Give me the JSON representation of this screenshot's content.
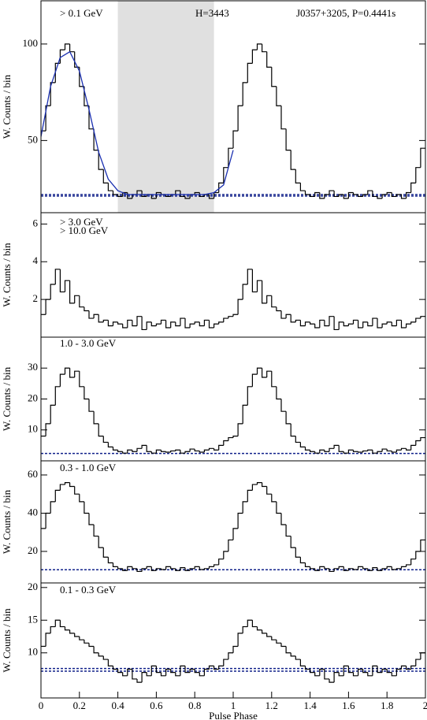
{
  "chart_data": [
    {
      "type": "histogram",
      "ylabel": "W. Counts / bin",
      "color": "#000000",
      "annotations": [
        {
          "text": "> 0.1 GeV",
          "color": "#000000"
        },
        {
          "text": "H=3443",
          "color": "#000000"
        },
        {
          "text": "J0357+3205, P=0.4441s",
          "color": "#1a1ad0"
        }
      ],
      "shade": [
        0.4,
        0.9
      ],
      "shade_color": "#e0e0e0",
      "background_levels": [
        21.2,
        22.0
      ],
      "background_color": "#10208a",
      "fit": {
        "color": "#1a2fb0",
        "x": [
          0,
          0.05,
          0.1,
          0.15,
          0.2,
          0.25,
          0.3,
          0.35,
          0.4,
          0.45,
          0.5,
          0.55,
          0.6,
          0.65,
          0.7,
          0.75,
          0.8,
          0.85,
          0.9,
          0.95,
          1.0
        ],
        "values": [
          52,
          78,
          93,
          96,
          86,
          66,
          44,
          30,
          24,
          22,
          22,
          22,
          22,
          22,
          22,
          22,
          22,
          22,
          23,
          27,
          45
        ]
      },
      "xlim": [
        0,
        2
      ],
      "ylim": [
        12.6,
        122.4
      ],
      "yticks": [
        50,
        100
      ],
      "bins": [
        0,
        0.025,
        0.05,
        0.075,
        0.1,
        0.125,
        0.15,
        0.175,
        0.2,
        0.225,
        0.25,
        0.275,
        0.3,
        0.325,
        0.35,
        0.375,
        0.4,
        0.425,
        0.45,
        0.475,
        0.5,
        0.525,
        0.55,
        0.575,
        0.6,
        0.625,
        0.65,
        0.675,
        0.7,
        0.725,
        0.75,
        0.775,
        0.8,
        0.825,
        0.85,
        0.875,
        0.9,
        0.925,
        0.95,
        0.975,
        1.0,
        1.025,
        1.05,
        1.075,
        1.1,
        1.125,
        1.15,
        1.175,
        1.2,
        1.225,
        1.25,
        1.275,
        1.3,
        1.325,
        1.35,
        1.375,
        1.4,
        1.425,
        1.45,
        1.475,
        1.5,
        1.525,
        1.55,
        1.575,
        1.6,
        1.625,
        1.65,
        1.675,
        1.7,
        1.725,
        1.75,
        1.775,
        1.8,
        1.825,
        1.85,
        1.875,
        1.9,
        1.925,
        1.95,
        1.975,
        2.0
      ],
      "values": [
        55,
        68,
        80,
        90,
        97,
        100,
        96,
        88,
        78,
        68,
        56,
        45,
        35,
        28,
        24,
        22,
        21,
        23,
        20,
        22,
        24,
        21,
        22,
        20,
        23,
        22,
        21,
        22,
        24,
        21,
        20,
        22,
        23,
        21,
        22,
        20,
        23,
        28,
        36,
        46,
        55,
        68,
        80,
        90,
        97,
        100,
        96,
        88,
        78,
        68,
        56,
        45,
        35,
        28,
        24,
        22,
        21,
        23,
        20,
        22,
        24,
        21,
        22,
        20,
        23,
        22,
        21,
        22,
        24,
        21,
        20,
        22,
        23,
        21,
        22,
        20,
        23,
        28,
        36,
        46
      ]
    },
    {
      "type": "histogram",
      "ylabel": "W. Counts / bin",
      "color": "#000000",
      "annotations": [
        {
          "text": "> 3.0 GeV",
          "color": "#000000"
        },
        {
          "text": "> 10.0 GeV",
          "color": "#999999"
        }
      ],
      "xlim": [
        0,
        2
      ],
      "ylim": [
        0,
        6.6
      ],
      "yticks": [
        2,
        4,
        6
      ],
      "bins": [
        0,
        0.025,
        0.05,
        0.075,
        0.1,
        0.125,
        0.15,
        0.175,
        0.2,
        0.225,
        0.25,
        0.275,
        0.3,
        0.325,
        0.35,
        0.375,
        0.4,
        0.425,
        0.45,
        0.475,
        0.5,
        0.525,
        0.55,
        0.575,
        0.6,
        0.625,
        0.65,
        0.675,
        0.7,
        0.725,
        0.75,
        0.775,
        0.8,
        0.825,
        0.85,
        0.875,
        0.9,
        0.925,
        0.95,
        0.975,
        1.0,
        1.025,
        1.05,
        1.075,
        1.1,
        1.125,
        1.15,
        1.175,
        1.2,
        1.225,
        1.25,
        1.275,
        1.3,
        1.325,
        1.35,
        1.375,
        1.4,
        1.425,
        1.45,
        1.475,
        1.5,
        1.525,
        1.55,
        1.575,
        1.6,
        1.625,
        1.65,
        1.675,
        1.7,
        1.725,
        1.75,
        1.775,
        1.8,
        1.825,
        1.85,
        1.875,
        1.9,
        1.925,
        1.95,
        1.975,
        2.0
      ],
      "values": [
        1.2,
        2.0,
        2.8,
        3.6,
        2.4,
        3.0,
        1.8,
        2.2,
        1.6,
        1.4,
        1.0,
        1.2,
        0.8,
        0.9,
        0.6,
        0.8,
        0.7,
        0.5,
        0.9,
        0.6,
        1.1,
        0.4,
        0.8,
        0.6,
        0.7,
        0.9,
        0.5,
        0.8,
        0.6,
        1.0,
        0.5,
        0.7,
        0.8,
        0.6,
        0.9,
        0.5,
        0.7,
        0.8,
        1.0,
        1.1,
        1.2,
        2.0,
        2.8,
        3.6,
        2.4,
        3.0,
        1.8,
        2.2,
        1.6,
        1.4,
        1.0,
        1.2,
        0.8,
        0.9,
        0.6,
        0.8,
        0.7,
        0.5,
        0.9,
        0.6,
        1.1,
        0.4,
        0.8,
        0.6,
        0.7,
        0.9,
        0.5,
        0.8,
        0.6,
        1.0,
        0.5,
        0.7,
        0.8,
        0.6,
        0.9,
        0.5,
        0.7,
        0.8,
        1.0,
        1.1
      ]
    },
    {
      "type": "histogram",
      "ylabel": "W. Counts / bin",
      "color": "#000000",
      "annotations": [
        {
          "text": "1.0 - 3.0 GeV",
          "color": "#000000"
        }
      ],
      "background_levels": [
        2.4
      ],
      "background_color": "#10208a",
      "xlim": [
        0,
        2
      ],
      "ylim": [
        0,
        40
      ],
      "yticks": [
        10,
        20,
        30
      ],
      "bins": [
        0,
        0.025,
        0.05,
        0.075,
        0.1,
        0.125,
        0.15,
        0.175,
        0.2,
        0.225,
        0.25,
        0.275,
        0.3,
        0.325,
        0.35,
        0.375,
        0.4,
        0.425,
        0.45,
        0.475,
        0.5,
        0.525,
        0.55,
        0.575,
        0.6,
        0.625,
        0.65,
        0.675,
        0.7,
        0.725,
        0.75,
        0.775,
        0.8,
        0.825,
        0.85,
        0.875,
        0.9,
        0.925,
        0.95,
        0.975,
        1.0,
        1.025,
        1.05,
        1.075,
        1.1,
        1.125,
        1.15,
        1.175,
        1.2,
        1.225,
        1.25,
        1.275,
        1.3,
        1.325,
        1.35,
        1.375,
        1.4,
        1.425,
        1.45,
        1.475,
        1.5,
        1.525,
        1.55,
        1.575,
        1.6,
        1.625,
        1.65,
        1.675,
        1.7,
        1.725,
        1.75,
        1.775,
        1.8,
        1.825,
        1.85,
        1.875,
        1.9,
        1.925,
        1.95,
        1.975,
        2.0
      ],
      "values": [
        8,
        12,
        18,
        24,
        28,
        30,
        27,
        29,
        24,
        20,
        16,
        12,
        8,
        6,
        4.5,
        3.5,
        3,
        2.5,
        3.5,
        3,
        4,
        5,
        3,
        2.5,
        3.5,
        3,
        2.8,
        3.2,
        3.5,
        2.5,
        3,
        3.8,
        3.2,
        2.8,
        3.5,
        4,
        3.5,
        5,
        6.5,
        7.5,
        8,
        12,
        18,
        24,
        28,
        30,
        27,
        29,
        24,
        20,
        16,
        12,
        8,
        6,
        4.5,
        3.5,
        3,
        2.5,
        3.5,
        3,
        4,
        5,
        3,
        2.5,
        3.5,
        3,
        2.8,
        3.2,
        3.5,
        2.5,
        3,
        3.8,
        3.2,
        2.8,
        3.5,
        4,
        3.5,
        5,
        6.5,
        7.5
      ]
    },
    {
      "type": "histogram",
      "ylabel": "W. Counts / bin",
      "color": "#000000",
      "annotations": [
        {
          "text": "0.3 - 1.0 GeV",
          "color": "#000000"
        }
      ],
      "background_levels": [
        10.4
      ],
      "background_color": "#10208a",
      "xlim": [
        0,
        2
      ],
      "ylim": [
        3.5,
        67.4
      ],
      "yticks": [
        20,
        40,
        60
      ],
      "bins": [
        0,
        0.025,
        0.05,
        0.075,
        0.1,
        0.125,
        0.15,
        0.175,
        0.2,
        0.225,
        0.25,
        0.275,
        0.3,
        0.325,
        0.35,
        0.375,
        0.4,
        0.425,
        0.45,
        0.475,
        0.5,
        0.525,
        0.55,
        0.575,
        0.6,
        0.625,
        0.65,
        0.675,
        0.7,
        0.725,
        0.75,
        0.775,
        0.8,
        0.825,
        0.85,
        0.875,
        0.9,
        0.925,
        0.95,
        0.975,
        1.0,
        1.025,
        1.05,
        1.075,
        1.1,
        1.125,
        1.15,
        1.175,
        1.2,
        1.225,
        1.25,
        1.275,
        1.3,
        1.325,
        1.35,
        1.375,
        1.4,
        1.425,
        1.45,
        1.475,
        1.5,
        1.525,
        1.55,
        1.575,
        1.6,
        1.625,
        1.65,
        1.675,
        1.7,
        1.725,
        1.75,
        1.775,
        1.8,
        1.825,
        1.85,
        1.875,
        1.9,
        1.925,
        1.95,
        1.975,
        2.0
      ],
      "values": [
        32,
        40,
        46,
        52,
        55,
        56,
        54,
        50,
        46,
        40,
        34,
        28,
        22,
        17,
        14,
        12,
        11,
        10,
        12,
        11,
        9.5,
        11,
        12,
        10,
        11,
        10.5,
        12,
        11,
        10,
        11.5,
        10,
        11,
        12,
        10.5,
        11,
        12,
        13,
        16,
        20,
        26,
        32,
        40,
        46,
        52,
        55,
        56,
        54,
        50,
        46,
        40,
        34,
        28,
        22,
        17,
        14,
        12,
        11,
        10,
        12,
        11,
        9.5,
        11,
        12,
        10,
        11,
        10.5,
        12,
        11,
        10,
        11.5,
        10,
        11,
        12,
        10.5,
        11,
        12,
        13,
        16,
        20,
        26
      ]
    },
    {
      "type": "histogram",
      "ylabel": "W. Counts / bin",
      "xlabel": "Pulse Phase",
      "color": "#000000",
      "annotations": [
        {
          "text": "0.1 - 0.3 GeV",
          "color": "#000000"
        }
      ],
      "background_levels": [
        7.2,
        7.6
      ],
      "background_color": "#10208a",
      "xlim": [
        0,
        2
      ],
      "xticks": [
        0,
        0.2,
        0.4,
        0.6,
        0.8,
        1,
        1.2,
        1.4,
        1.6,
        1.8,
        2
      ],
      "ylim": [
        3.1,
        20.7
      ],
      "yticks": [
        10,
        15,
        20
      ],
      "bins": [
        0,
        0.025,
        0.05,
        0.075,
        0.1,
        0.125,
        0.15,
        0.175,
        0.2,
        0.225,
        0.25,
        0.275,
        0.3,
        0.325,
        0.35,
        0.375,
        0.4,
        0.425,
        0.45,
        0.475,
        0.5,
        0.525,
        0.55,
        0.575,
        0.6,
        0.625,
        0.65,
        0.675,
        0.7,
        0.725,
        0.75,
        0.775,
        0.8,
        0.825,
        0.85,
        0.875,
        0.9,
        0.925,
        0.95,
        0.975,
        1.0,
        1.025,
        1.05,
        1.075,
        1.1,
        1.125,
        1.15,
        1.175,
        1.2,
        1.225,
        1.25,
        1.275,
        1.3,
        1.325,
        1.35,
        1.375,
        1.4,
        1.425,
        1.45,
        1.475,
        1.5,
        1.525,
        1.55,
        1.575,
        1.6,
        1.625,
        1.65,
        1.675,
        1.7,
        1.725,
        1.75,
        1.775,
        1.8,
        1.825,
        1.85,
        1.875,
        1.9,
        1.925,
        1.95,
        1.975,
        2.0
      ],
      "values": [
        11,
        13,
        14,
        15,
        14,
        13.5,
        13,
        12.5,
        12,
        11.5,
        11,
        10,
        9.5,
        9,
        8,
        7.5,
        7,
        6.5,
        7.5,
        6,
        5.5,
        7,
        6.5,
        8,
        7,
        6.5,
        7.5,
        7,
        6.5,
        8,
        7,
        7.5,
        7,
        6.5,
        7.5,
        8,
        7.5,
        8,
        9,
        10,
        11,
        13,
        14,
        15,
        14,
        13.5,
        13,
        12.5,
        12,
        11.5,
        11,
        10,
        9.5,
        9,
        8,
        7.5,
        7,
        6.5,
        7.5,
        6,
        5.5,
        7,
        6.5,
        8,
        7,
        6.5,
        7.5,
        7,
        6.5,
        8,
        7,
        7.5,
        7,
        6.5,
        7.5,
        8,
        7.5,
        8,
        9,
        10
      ]
    }
  ]
}
